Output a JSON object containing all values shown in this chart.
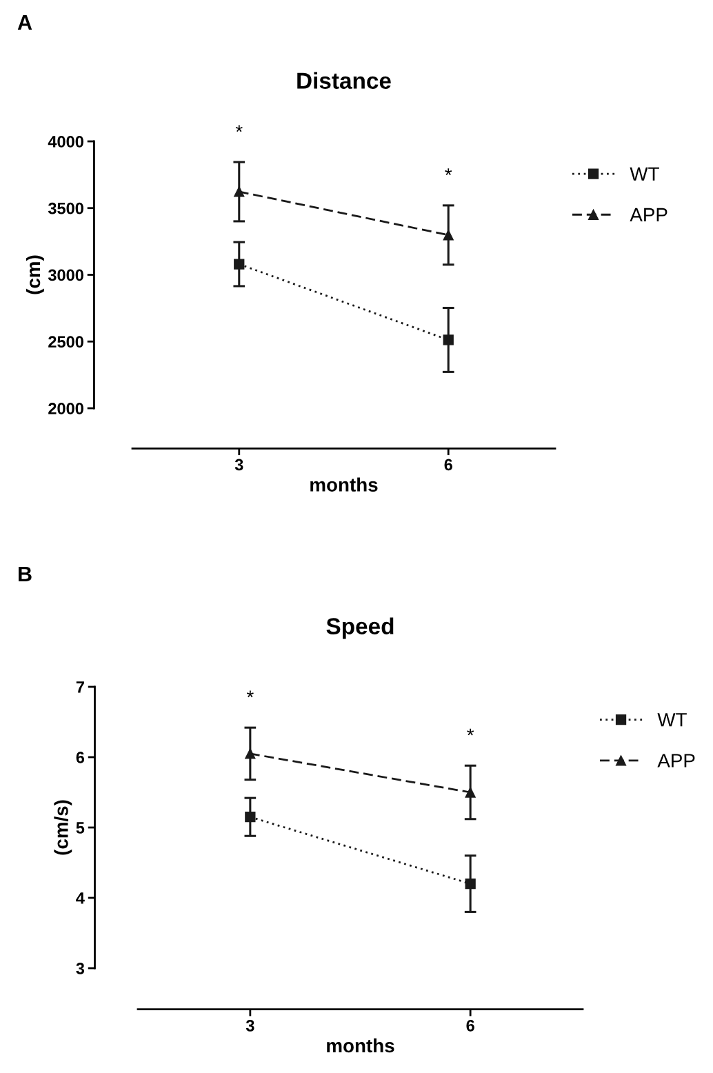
{
  "chart_data": [
    {
      "type": "line",
      "title": "Distance",
      "xlabel": "months",
      "ylabel": "(cm)",
      "categories": [
        "3",
        "6"
      ],
      "ylim": [
        2000,
        4000
      ],
      "yticks": [
        2000,
        2500,
        3000,
        3500,
        4000
      ],
      "grid": false,
      "legend": "top right",
      "series": [
        {
          "name": "WT",
          "color": "#1a1a1a",
          "values": [
            3080,
            2512
          ],
          "errors": [
            165,
            240
          ],
          "marker": "square",
          "line_style": "dotted"
        },
        {
          "name": "APP",
          "color": "#1a1a1a",
          "values": [
            3623,
            3298
          ],
          "errors": [
            222,
            222
          ],
          "marker": "triangle",
          "line_style": "dashed"
        }
      ],
      "annotations": [
        "A",
        "*",
        "*"
      ]
    },
    {
      "type": "line",
      "title": "Speed",
      "xlabel": "months",
      "ylabel": "(cm/s)",
      "categories": [
        "3",
        "6"
      ],
      "ylim": [
        3,
        7
      ],
      "yticks": [
        3,
        4,
        5,
        6,
        7
      ],
      "grid": false,
      "legend": "top right",
      "series": [
        {
          "name": "WT",
          "color": "#1a1a1a",
          "values": [
            5.15,
            4.2
          ],
          "errors": [
            0.27,
            0.4
          ],
          "marker": "square",
          "line_style": "dotted"
        },
        {
          "name": "APP",
          "color": "#1a1a1a",
          "values": [
            6.05,
            5.5
          ],
          "errors": [
            0.37,
            0.38
          ],
          "marker": "triangle",
          "line_style": "dashed"
        }
      ],
      "annotations": [
        "B",
        "*",
        "*"
      ]
    }
  ]
}
